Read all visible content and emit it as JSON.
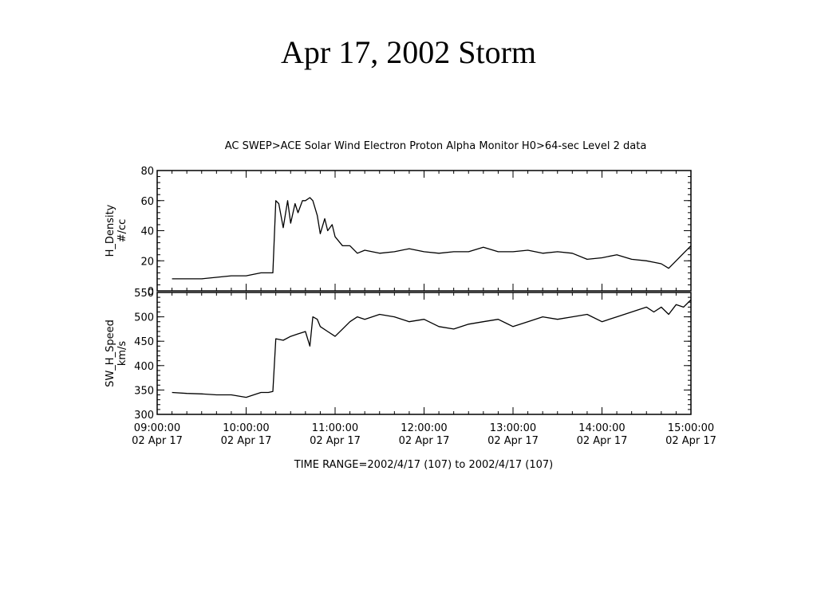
{
  "slide": {
    "title": "Apr 17, 2002 Storm"
  },
  "chart_data": {
    "type": "line",
    "title": "AC  SWEP>ACE Solar Wind Electron Proton Alpha Monitor  H0>64-sec Level 2 data",
    "x_axis": {
      "range": [
        "09:00:00",
        "15:00:00"
      ],
      "tick_labels": [
        {
          "time": "09:00:00",
          "date": "02 Apr 17"
        },
        {
          "time": "10:00:00",
          "date": "02 Apr 17"
        },
        {
          "time": "11:00:00",
          "date": "02 Apr 17"
        },
        {
          "time": "12:00:00",
          "date": "02 Apr 17"
        },
        {
          "time": "13:00:00",
          "date": "02 Apr 17"
        },
        {
          "time": "14:00:00",
          "date": "02 Apr 17"
        },
        {
          "time": "15:00:00",
          "date": "02 Apr 17"
        }
      ],
      "footer": "TIME RANGE=2002/4/17 (107) to 2002/4/17 (107)"
    },
    "panels": [
      {
        "ylabel": "H_Density",
        "units": "#/cc",
        "ylim": [
          0,
          80
        ],
        "yticks": [
          "0",
          "20",
          "40",
          "60",
          "80"
        ],
        "series": [
          {
            "x": [
              "09:10",
              "09:20",
              "09:30",
              "09:40",
              "09:50",
              "10:00",
              "10:10",
              "10:15",
              "10:18",
              "10:20",
              "10:22",
              "10:25",
              "10:28",
              "10:30",
              "10:33",
              "10:35",
              "10:38",
              "10:40",
              "10:43",
              "10:45",
              "10:48",
              "10:50",
              "10:53",
              "10:55",
              "10:58",
              "11:00",
              "11:05",
              "11:10",
              "11:15",
              "11:20",
              "11:30",
              "11:40",
              "11:50",
              "12:00",
              "12:10",
              "12:20",
              "12:30",
              "12:40",
              "12:50",
              "13:00",
              "13:10",
              "13:20",
              "13:30",
              "13:40",
              "13:50",
              "14:00",
              "14:10",
              "14:20",
              "14:30",
              "14:35",
              "14:40",
              "14:45",
              "14:50",
              "14:55",
              "15:00"
            ],
            "y": [
              8,
              8,
              8,
              9,
              10,
              10,
              12,
              12,
              12,
              60,
              58,
              42,
              60,
              45,
              58,
              52,
              60,
              60,
              62,
              60,
              50,
              38,
              48,
              40,
              44,
              36,
              30,
              30,
              25,
              27,
              25,
              26,
              28,
              26,
              25,
              26,
              26,
              29,
              26,
              26,
              27,
              25,
              26,
              25,
              21,
              22,
              24,
              21,
              20,
              19,
              18,
              15,
              20,
              25,
              30
            ]
          }
        ]
      },
      {
        "ylabel": "SW_H_Speed",
        "units": "km/s",
        "ylim": [
          300,
          550
        ],
        "yticks": [
          "300",
          "350",
          "400",
          "450",
          "500",
          "550"
        ],
        "series": [
          {
            "x": [
              "09:10",
              "09:20",
              "09:30",
              "09:40",
              "09:50",
              "10:00",
              "10:10",
              "10:15",
              "10:18",
              "10:20",
              "10:25",
              "10:30",
              "10:35",
              "10:40",
              "10:43",
              "10:45",
              "10:48",
              "10:50",
              "10:55",
              "11:00",
              "11:05",
              "11:10",
              "11:15",
              "11:20",
              "11:30",
              "11:40",
              "11:50",
              "12:00",
              "12:10",
              "12:20",
              "12:30",
              "12:40",
              "12:50",
              "13:00",
              "13:10",
              "13:20",
              "13:30",
              "13:40",
              "13:50",
              "14:00",
              "14:10",
              "14:20",
              "14:30",
              "14:35",
              "14:40",
              "14:45",
              "14:50",
              "14:55",
              "15:00"
            ],
            "y": [
              345,
              343,
              342,
              340,
              340,
              335,
              345,
              345,
              347,
              455,
              452,
              460,
              465,
              470,
              440,
              500,
              495,
              480,
              470,
              460,
              475,
              490,
              500,
              495,
              505,
              500,
              490,
              495,
              480,
              475,
              485,
              490,
              495,
              480,
              490,
              500,
              495,
              500,
              505,
              490,
              500,
              510,
              520,
              510,
              520,
              505,
              525,
              520,
              535
            ]
          }
        ]
      }
    ]
  }
}
